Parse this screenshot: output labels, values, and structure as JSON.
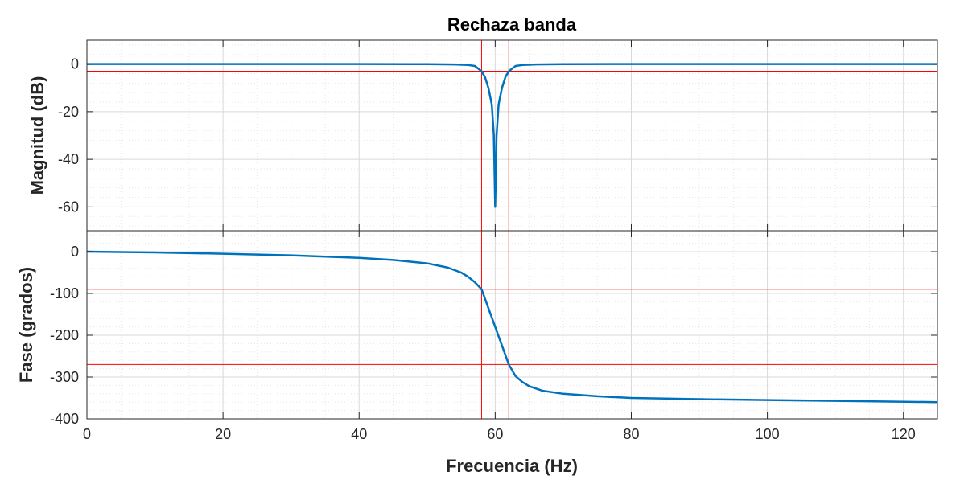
{
  "chart_data": [
    {
      "type": "line",
      "title": "Rechaza banda",
      "xlabel": "",
      "ylabel": "Magnitud (dB)",
      "xlim": [
        0,
        125
      ],
      "ylim": [
        -70,
        10
      ],
      "x_ticks": [
        0,
        20,
        40,
        60,
        80,
        100,
        120
      ],
      "y_ticks": [
        0,
        -20,
        -40,
        -60
      ],
      "y_tick_labels": [
        "0",
        "-20",
        "-40",
        "-60"
      ],
      "grid": true,
      "minor_grid": true,
      "series": [
        {
          "color": "#0072BD",
          "x": [
            0,
            20,
            40,
            50,
            54,
            56,
            57,
            58,
            58.5,
            59,
            59.5,
            59.8,
            60,
            60.2,
            60.5,
            61,
            61.5,
            62,
            63,
            64,
            66,
            70,
            80,
            100,
            125
          ],
          "y": [
            0,
            0,
            0,
            -0.05,
            -0.15,
            -0.4,
            -0.8,
            -3,
            -5.5,
            -10,
            -17,
            -30,
            -60,
            -30,
            -17,
            -10,
            -5.5,
            -3,
            -0.8,
            -0.4,
            -0.15,
            -0.05,
            0,
            0,
            0
          ]
        }
      ],
      "reference_lines": {
        "color": "#FF0000",
        "vertical_x": [
          58,
          62
        ],
        "horizontal_y": [
          -3
        ]
      }
    },
    {
      "type": "line",
      "title": "",
      "xlabel": "Frecuencia (Hz)",
      "ylabel": "Fase (grados)",
      "xlim": [
        0,
        125
      ],
      "ylim": [
        -400,
        50
      ],
      "x_ticks": [
        0,
        20,
        40,
        60,
        80,
        100,
        120
      ],
      "x_tick_labels": [
        "0",
        "20",
        "40",
        "60",
        "80",
        "100",
        "120"
      ],
      "y_ticks": [
        0,
        -100,
        -200,
        -300,
        -400
      ],
      "y_tick_labels": [
        "0",
        "-100",
        "-200",
        "-300",
        "-400"
      ],
      "grid": true,
      "minor_grid": true,
      "series": [
        {
          "color": "#0072BD",
          "x": [
            0,
            10,
            20,
            30,
            40,
            45,
            50,
            53,
            55,
            56,
            57,
            58,
            59,
            60,
            61,
            62,
            63,
            64,
            65,
            67,
            70,
            75,
            80,
            90,
            100,
            110,
            125
          ],
          "y": [
            0,
            -2,
            -5,
            -9,
            -15,
            -20,
            -28,
            -38,
            -50,
            -60,
            -73,
            -90,
            -135,
            -180,
            -225,
            -270,
            -298,
            -312,
            -322,
            -333,
            -340,
            -346,
            -350,
            -353,
            -355,
            -357,
            -360
          ]
        }
      ],
      "reference_lines": {
        "color": "#FF0000",
        "vertical_x": [
          58,
          62
        ],
        "horizontal_y": [
          -90,
          -270
        ]
      }
    }
  ]
}
